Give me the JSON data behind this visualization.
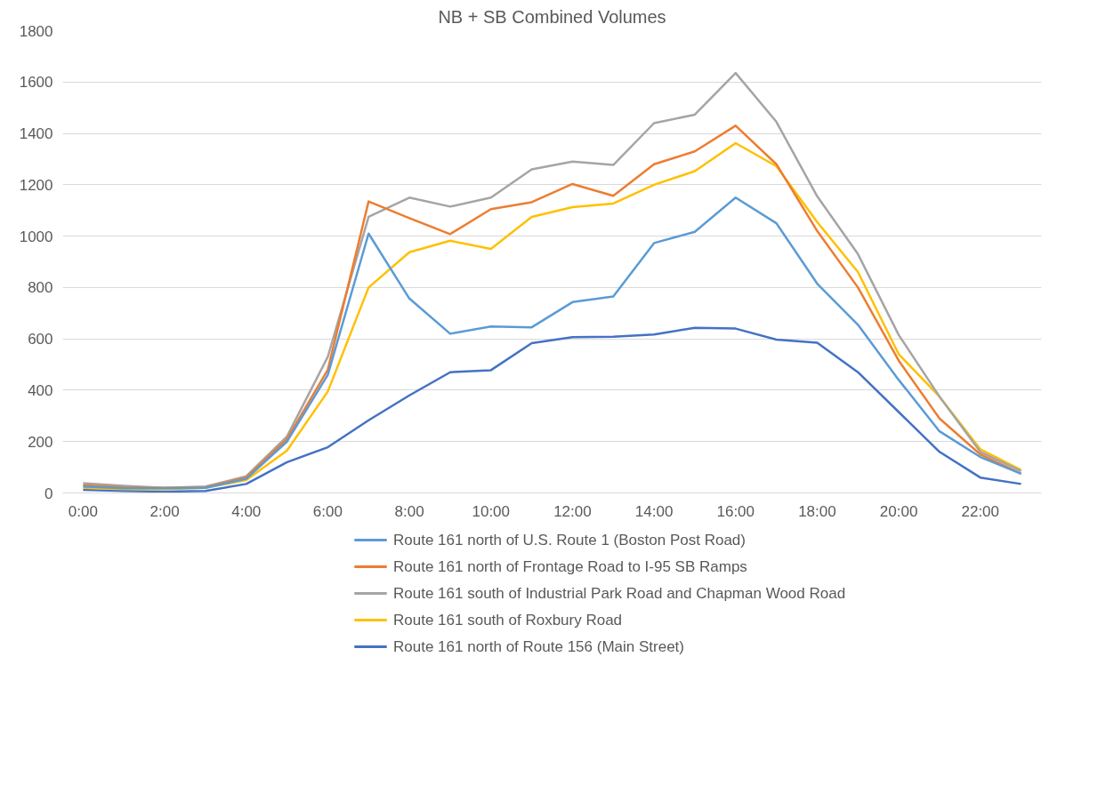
{
  "chart_data": {
    "type": "line",
    "title": "NB + SB Combined Volumes",
    "x": [
      0,
      1,
      2,
      3,
      4,
      5,
      6,
      7,
      8,
      9,
      10,
      11,
      12,
      13,
      14,
      15,
      16,
      17,
      18,
      19,
      20,
      21,
      22,
      23
    ],
    "xlim": [
      -0.5,
      23.5
    ],
    "xticks": [
      {
        "value": 0,
        "label": "0:00"
      },
      {
        "value": 2,
        "label": "2:00"
      },
      {
        "value": 4,
        "label": "4:00"
      },
      {
        "value": 6,
        "label": "6:00"
      },
      {
        "value": 8,
        "label": "8:00"
      },
      {
        "value": 10,
        "label": "10:00"
      },
      {
        "value": 12,
        "label": "12:00"
      },
      {
        "value": 14,
        "label": "14:00"
      },
      {
        "value": 16,
        "label": "16:00"
      },
      {
        "value": 18,
        "label": "18:00"
      },
      {
        "value": 20,
        "label": "20:00"
      },
      {
        "value": 22,
        "label": "22:00"
      }
    ],
    "ylim": [
      0,
      1800
    ],
    "yticks": [
      0,
      200,
      400,
      600,
      800,
      1000,
      1200,
      1400,
      1600,
      1800
    ],
    "grid": "y",
    "legend": "bottom",
    "marker": "none",
    "line_style": "solid",
    "series": [
      {
        "name": "Route 161 north of U.S. Route 1 (Boston Post Road)",
        "color": "#5b9bd5",
        "values": [
          25,
          18,
          18,
          20,
          55,
          200,
          460,
          1010,
          757,
          620,
          648,
          645,
          743,
          765,
          973,
          1017,
          1150,
          1050,
          815,
          655,
          440,
          240,
          140,
          75
        ]
      },
      {
        "name": "Route 161 north of Frontage Road to I-95 SB Ramps",
        "color": "#ed7d31",
        "values": [
          30,
          22,
          20,
          22,
          60,
          210,
          480,
          1135,
          1070,
          1008,
          1105,
          1132,
          1203,
          1157,
          1280,
          1330,
          1430,
          1280,
          1020,
          800,
          515,
          290,
          150,
          75
        ]
      },
      {
        "name": "Route 161 south of Industrial Park Road and Chapman Wood Road",
        "color": "#a5a5a5",
        "values": [
          38,
          28,
          20,
          25,
          65,
          220,
          530,
          1075,
          1150,
          1115,
          1150,
          1260,
          1290,
          1277,
          1440,
          1473,
          1635,
          1445,
          1155,
          930,
          615,
          375,
          160,
          85
        ]
      },
      {
        "name": "Route 161 south of Roxbury Road",
        "color": "#ffc000",
        "values": [
          20,
          15,
          15,
          20,
          50,
          165,
          395,
          800,
          937,
          982,
          950,
          1075,
          1113,
          1127,
          1200,
          1253,
          1362,
          1272,
          1055,
          860,
          540,
          375,
          170,
          90
        ]
      },
      {
        "name": "Route 161 north of Route 156 (Main Street)",
        "color": "#4472c4",
        "values": [
          12,
          8,
          5,
          8,
          35,
          120,
          178,
          283,
          380,
          470,
          478,
          583,
          607,
          608,
          617,
          643,
          640,
          597,
          585,
          470,
          315,
          160,
          60,
          35
        ]
      }
    ]
  }
}
